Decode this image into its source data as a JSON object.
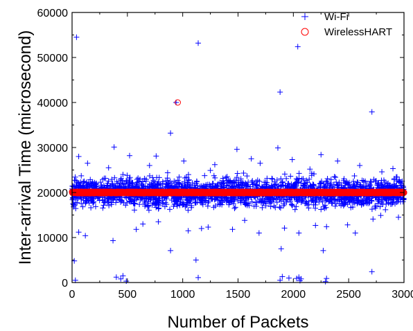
{
  "chart_data": {
    "type": "scatter",
    "title": "",
    "xlabel": "Number of Packets",
    "ylabel": "Inter-arrival Time (microsecond)",
    "xlim": [
      0,
      3000
    ],
    "ylim": [
      0,
      60000
    ],
    "xticks": [
      0,
      500,
      1000,
      1500,
      2000,
      2500,
      3000
    ],
    "xtick_labels": [
      "0",
      "500",
      "1000",
      "1500",
      "2000",
      "2500",
      "3000"
    ],
    "yticks": [
      0,
      10000,
      20000,
      30000,
      40000,
      50000,
      60000
    ],
    "ytick_labels": [
      "0",
      "10000",
      "20000",
      "30000",
      "40000",
      "50000",
      "60000"
    ],
    "grid": false,
    "legend_position": "top-right",
    "series": [
      {
        "name": "Wi-Fi",
        "marker": "plus",
        "color": "#0000ff",
        "band": {
          "x_range": [
            0,
            3000
          ],
          "center": 20000,
          "spread": 1500,
          "count": 2400
        },
        "points": [
          [
            40,
            54500
          ],
          [
            1140,
            53200
          ],
          [
            2040,
            52400
          ],
          [
            1880,
            42300
          ],
          [
            940,
            40000
          ],
          [
            2710,
            37900
          ],
          [
            890,
            33200
          ],
          [
            380,
            30100
          ],
          [
            1490,
            29600
          ],
          [
            1860,
            29900
          ],
          [
            2250,
            28400
          ],
          [
            60,
            28000
          ],
          [
            520,
            28200
          ],
          [
            760,
            28100
          ],
          [
            1010,
            27000
          ],
          [
            1620,
            27500
          ],
          [
            1990,
            27300
          ],
          [
            2400,
            27000
          ],
          [
            140,
            26500
          ],
          [
            700,
            26000
          ],
          [
            1290,
            26200
          ],
          [
            1700,
            26500
          ],
          [
            2600,
            26000
          ],
          [
            2900,
            25300
          ],
          [
            330,
            25500
          ],
          [
            1250,
            24900
          ],
          [
            2150,
            25200
          ],
          [
            2800,
            24600
          ],
          [
            460,
            24000
          ],
          [
            1550,
            24300
          ],
          [
            60,
            11200
          ],
          [
            120,
            10400
          ],
          [
            370,
            9300
          ],
          [
            580,
            11800
          ],
          [
            640,
            13000
          ],
          [
            780,
            13500
          ],
          [
            890,
            7100
          ],
          [
            1050,
            11500
          ],
          [
            1120,
            5000
          ],
          [
            1170,
            12000
          ],
          [
            1230,
            12300
          ],
          [
            1450,
            11800
          ],
          [
            1560,
            13800
          ],
          [
            1690,
            11000
          ],
          [
            1890,
            7500
          ],
          [
            1920,
            12100
          ],
          [
            2050,
            11000
          ],
          [
            2200,
            12700
          ],
          [
            2270,
            7100
          ],
          [
            2300,
            12400
          ],
          [
            2490,
            12800
          ],
          [
            2560,
            11000
          ],
          [
            2720,
            14100
          ],
          [
            2790,
            14900
          ],
          [
            2950,
            14500
          ],
          [
            20,
            4800
          ],
          [
            30,
            500
          ],
          [
            400,
            1200
          ],
          [
            440,
            800
          ],
          [
            460,
            1500
          ],
          [
            490,
            300
          ],
          [
            1140,
            1100
          ],
          [
            1880,
            500
          ],
          [
            1900,
            1300
          ],
          [
            1960,
            1000
          ],
          [
            2030,
            900
          ],
          [
            2050,
            1200
          ],
          [
            2060,
            400
          ],
          [
            2070,
            800
          ],
          [
            2290,
            200
          ],
          [
            2300,
            900
          ],
          [
            2710,
            2400
          ]
        ]
      },
      {
        "name": "WirelessHART",
        "marker": "circle",
        "color": "#ff0000",
        "band": {
          "x_range": [
            0,
            3000
          ],
          "center": 20000,
          "spread": 300,
          "count": 3000
        },
        "points": [
          [
            955,
            40000
          ],
          [
            3000,
            20000
          ]
        ]
      }
    ]
  }
}
